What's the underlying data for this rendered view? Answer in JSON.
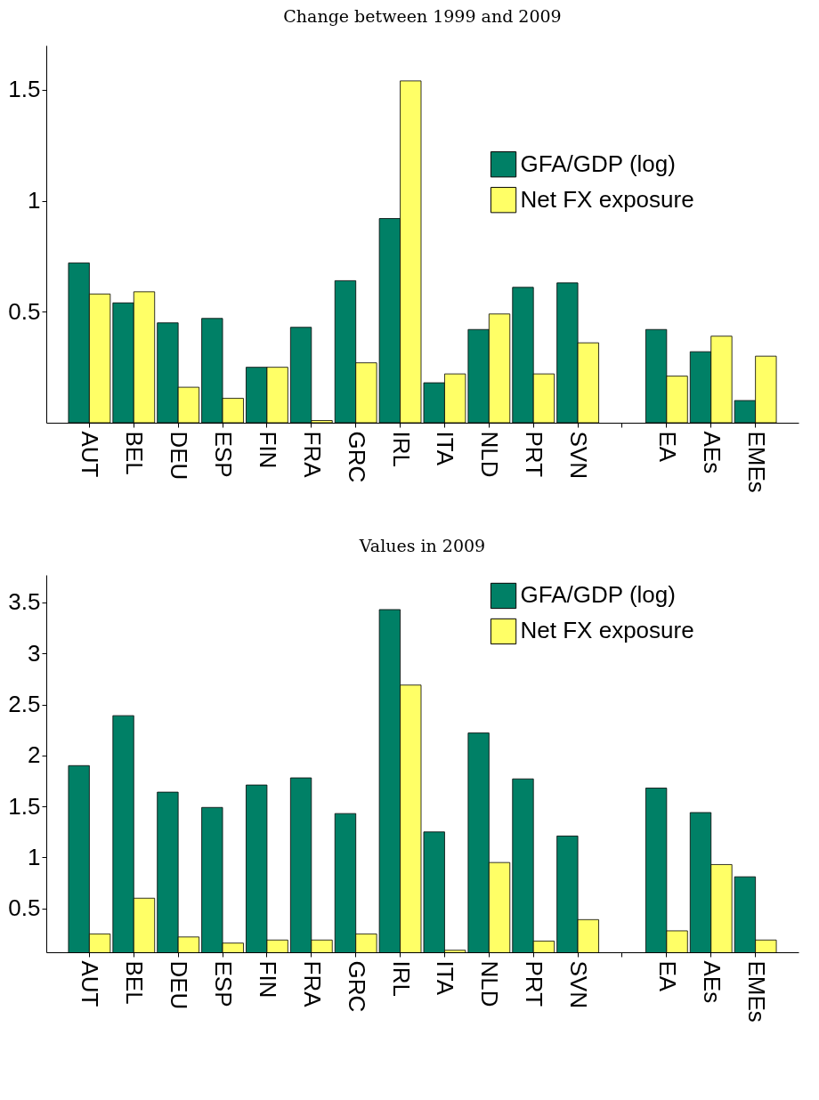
{
  "chart_data": [
    {
      "type": "bar",
      "title": "Change between 1999 and 2009",
      "categories": [
        "AUT",
        "BEL",
        "DEU",
        "ESP",
        "FIN",
        "FRA",
        "GRC",
        "IRL",
        "ITA",
        "NLD",
        "PRT",
        "SVN",
        null,
        "EA",
        "AEs",
        "EMEs"
      ],
      "series": [
        {
          "name": "GFA/GDP (log)",
          "color": "#008066",
          "values": [
            0.72,
            0.54,
            0.45,
            0.47,
            0.25,
            0.43,
            0.64,
            0.92,
            0.18,
            0.42,
            0.61,
            0.63,
            null,
            0.42,
            0.32,
            0.1
          ]
        },
        {
          "name": "Net FX exposure",
          "color": "#ffff66",
          "values": [
            0.58,
            0.59,
            0.16,
            0.11,
            0.25,
            0.01,
            0.27,
            1.54,
            0.22,
            0.49,
            0.22,
            0.36,
            null,
            0.21,
            0.39,
            0.3
          ]
        }
      ],
      "ylim": [
        0,
        1.7
      ],
      "yticks": [
        0.5,
        1,
        1.5
      ],
      "legend": "right"
    },
    {
      "type": "bar",
      "title": "Values in 2009",
      "categories": [
        "AUT",
        "BEL",
        "DEU",
        "ESP",
        "FIN",
        "FRA",
        "GRC",
        "IRL",
        "ITA",
        "NLD",
        "PRT",
        "SVN",
        null,
        "EA",
        "AEs",
        "EMEs"
      ],
      "series": [
        {
          "name": "GFA/GDP (log)",
          "color": "#008066",
          "values": [
            1.9,
            2.39,
            1.64,
            1.49,
            1.71,
            1.78,
            1.43,
            3.43,
            1.25,
            2.22,
            1.77,
            1.21,
            null,
            1.68,
            1.44,
            0.81
          ]
        },
        {
          "name": "Net FX exposure",
          "color": "#ffff66",
          "values": [
            0.25,
            0.6,
            0.22,
            0.16,
            0.19,
            0.19,
            0.25,
            2.69,
            0.09,
            0.95,
            0.18,
            0.39,
            null,
            0.28,
            0.93,
            0.19
          ]
        }
      ],
      "ylim": [
        0.07,
        3.77
      ],
      "yticks": [
        0.5,
        1,
        1.5,
        2,
        2.5,
        3,
        3.5
      ],
      "legend": "top right"
    }
  ]
}
